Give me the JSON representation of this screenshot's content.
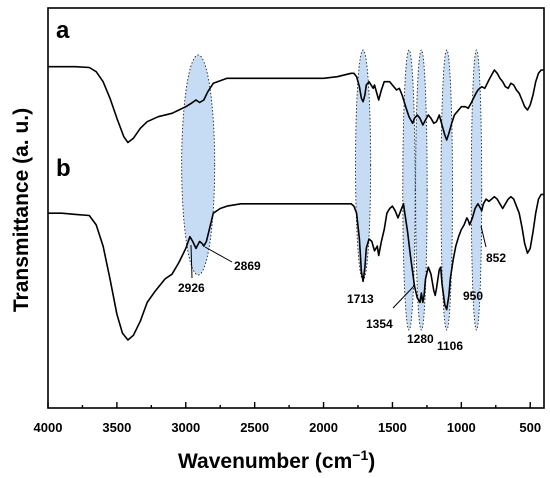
{
  "chart_data": {
    "type": "line",
    "xlabel_main": "Wavenumber (cm",
    "xlabel_sup": "−1",
    "xlabel_close": ")",
    "ylabel": "Transmittance (a. u.)",
    "xlim": [
      4000,
      400
    ],
    "x_ticks": [
      4000,
      3500,
      3000,
      2500,
      2000,
      1500,
      1000,
      500
    ],
    "series": [
      {
        "name": "a",
        "points": [
          [
            4000,
            0.13
          ],
          [
            3800,
            0.13
          ],
          [
            3700,
            0.135
          ],
          [
            3650,
            0.16
          ],
          [
            3600,
            0.22
          ],
          [
            3550,
            0.32
          ],
          [
            3500,
            0.44
          ],
          [
            3450,
            0.55
          ],
          [
            3420,
            0.585
          ],
          [
            3380,
            0.56
          ],
          [
            3330,
            0.5
          ],
          [
            3280,
            0.46
          ],
          [
            3200,
            0.43
          ],
          [
            3100,
            0.41
          ],
          [
            3050,
            0.39
          ],
          [
            3000,
            0.37
          ],
          [
            2960,
            0.35
          ],
          [
            2926,
            0.33
          ],
          [
            2900,
            0.345
          ],
          [
            2869,
            0.33
          ],
          [
            2840,
            0.28
          ],
          [
            2800,
            0.23
          ],
          [
            2700,
            0.2
          ],
          [
            2600,
            0.2
          ],
          [
            2500,
            0.2
          ],
          [
            2400,
            0.2
          ],
          [
            2300,
            0.2
          ],
          [
            2200,
            0.2
          ],
          [
            2100,
            0.2
          ],
          [
            2000,
            0.2
          ],
          [
            1900,
            0.19
          ],
          [
            1800,
            0.17
          ],
          [
            1780,
            0.17
          ],
          [
            1760,
            0.19
          ],
          [
            1740,
            0.25
          ],
          [
            1725,
            0.32
          ],
          [
            1713,
            0.34
          ],
          [
            1700,
            0.3
          ],
          [
            1690,
            0.24
          ],
          [
            1670,
            0.22
          ],
          [
            1640,
            0.26
          ],
          [
            1630,
            0.24
          ],
          [
            1600,
            0.33
          ],
          [
            1580,
            0.27
          ],
          [
            1560,
            0.22
          ],
          [
            1520,
            0.22
          ],
          [
            1490,
            0.25
          ],
          [
            1470,
            0.27
          ],
          [
            1450,
            0.26
          ],
          [
            1430,
            0.3
          ],
          [
            1400,
            0.38
          ],
          [
            1380,
            0.43
          ],
          [
            1354,
            0.47
          ],
          [
            1340,
            0.44
          ],
          [
            1320,
            0.42
          ],
          [
            1300,
            0.44
          ],
          [
            1280,
            0.48
          ],
          [
            1260,
            0.45
          ],
          [
            1240,
            0.42
          ],
          [
            1220,
            0.44
          ],
          [
            1200,
            0.47
          ],
          [
            1180,
            0.46
          ],
          [
            1160,
            0.42
          ],
          [
            1140,
            0.48
          ],
          [
            1120,
            0.54
          ],
          [
            1106,
            0.57
          ],
          [
            1090,
            0.53
          ],
          [
            1070,
            0.47
          ],
          [
            1050,
            0.42
          ],
          [
            1030,
            0.4
          ],
          [
            1000,
            0.37
          ],
          [
            970,
            0.37
          ],
          [
            950,
            0.38
          ],
          [
            930,
            0.35
          ],
          [
            900,
            0.3
          ],
          [
            880,
            0.27
          ],
          [
            852,
            0.25
          ],
          [
            830,
            0.26
          ],
          [
            800,
            0.21
          ],
          [
            780,
            0.18
          ],
          [
            760,
            0.15
          ],
          [
            740,
            0.17
          ],
          [
            720,
            0.2
          ],
          [
            700,
            0.22
          ],
          [
            680,
            0.25
          ],
          [
            660,
            0.26
          ],
          [
            640,
            0.23
          ],
          [
            620,
            0.24
          ],
          [
            600,
            0.27
          ],
          [
            580,
            0.29
          ],
          [
            560,
            0.33
          ],
          [
            540,
            0.37
          ],
          [
            520,
            0.39
          ],
          [
            500,
            0.36
          ],
          [
            480,
            0.3
          ],
          [
            460,
            0.22
          ],
          [
            440,
            0.17
          ],
          [
            420,
            0.15
          ],
          [
            400,
            0.15
          ]
        ]
      },
      {
        "name": "b",
        "points": [
          [
            4000,
            0.12
          ],
          [
            3900,
            0.12
          ],
          [
            3800,
            0.125
          ],
          [
            3700,
            0.13
          ],
          [
            3650,
            0.17
          ],
          [
            3600,
            0.26
          ],
          [
            3550,
            0.4
          ],
          [
            3500,
            0.55
          ],
          [
            3460,
            0.63
          ],
          [
            3420,
            0.66
          ],
          [
            3380,
            0.64
          ],
          [
            3330,
            0.58
          ],
          [
            3280,
            0.5
          ],
          [
            3220,
            0.45
          ],
          [
            3150,
            0.4
          ],
          [
            3100,
            0.38
          ],
          [
            3050,
            0.33
          ],
          [
            3000,
            0.27
          ],
          [
            2970,
            0.22
          ],
          [
            2950,
            0.24
          ],
          [
            2926,
            0.27
          ],
          [
            2900,
            0.24
          ],
          [
            2880,
            0.25
          ],
          [
            2869,
            0.26
          ],
          [
            2850,
            0.24
          ],
          [
            2800,
            0.12
          ],
          [
            2750,
            0.1
          ],
          [
            2700,
            0.09
          ],
          [
            2600,
            0.08
          ],
          [
            2500,
            0.08
          ],
          [
            2400,
            0.08
          ],
          [
            2300,
            0.08
          ],
          [
            2200,
            0.08
          ],
          [
            2100,
            0.08
          ],
          [
            2000,
            0.08
          ],
          [
            1900,
            0.08
          ],
          [
            1800,
            0.08
          ],
          [
            1780,
            0.09
          ],
          [
            1760,
            0.12
          ],
          [
            1740,
            0.23
          ],
          [
            1725,
            0.37
          ],
          [
            1713,
            0.41
          ],
          [
            1700,
            0.35
          ],
          [
            1690,
            0.27
          ],
          [
            1670,
            0.23
          ],
          [
            1650,
            0.24
          ],
          [
            1630,
            0.28
          ],
          [
            1610,
            0.26
          ],
          [
            1600,
            0.3
          ],
          [
            1580,
            0.24
          ],
          [
            1560,
            0.19
          ],
          [
            1540,
            0.12
          ],
          [
            1520,
            0.1
          ],
          [
            1500,
            0.09
          ],
          [
            1480,
            0.11
          ],
          [
            1460,
            0.14
          ],
          [
            1440,
            0.11
          ],
          [
            1420,
            0.08
          ],
          [
            1410,
            0.12
          ],
          [
            1390,
            0.2
          ],
          [
            1370,
            0.3
          ],
          [
            1354,
            0.37
          ],
          [
            1340,
            0.43
          ],
          [
            1320,
            0.48
          ],
          [
            1300,
            0.5
          ],
          [
            1290,
            0.46
          ],
          [
            1280,
            0.5
          ],
          [
            1270,
            0.47
          ],
          [
            1260,
            0.4
          ],
          [
            1240,
            0.35
          ],
          [
            1220,
            0.38
          ],
          [
            1200,
            0.45
          ],
          [
            1190,
            0.47
          ],
          [
            1180,
            0.44
          ],
          [
            1160,
            0.36
          ],
          [
            1150,
            0.35
          ],
          [
            1140,
            0.42
          ],
          [
            1120,
            0.51
          ],
          [
            1106,
            0.53
          ],
          [
            1090,
            0.47
          ],
          [
            1080,
            0.4
          ],
          [
            1060,
            0.32
          ],
          [
            1040,
            0.26
          ],
          [
            1020,
            0.22
          ],
          [
            1000,
            0.19
          ],
          [
            980,
            0.17
          ],
          [
            960,
            0.14
          ],
          [
            950,
            0.15
          ],
          [
            940,
            0.17
          ],
          [
            920,
            0.14
          ],
          [
            900,
            0.1
          ],
          [
            880,
            0.08
          ],
          [
            860,
            0.1
          ],
          [
            852,
            0.11
          ],
          [
            840,
            0.08
          ],
          [
            820,
            0.06
          ],
          [
            800,
            0.07
          ],
          [
            780,
            0.06
          ],
          [
            760,
            0.05
          ],
          [
            740,
            0.06
          ],
          [
            720,
            0.08
          ],
          [
            700,
            0.1
          ],
          [
            680,
            0.08
          ],
          [
            660,
            0.06
          ],
          [
            640,
            0.05
          ],
          [
            620,
            0.06
          ],
          [
            600,
            0.09
          ],
          [
            580,
            0.12
          ],
          [
            560,
            0.18
          ],
          [
            540,
            0.25
          ],
          [
            520,
            0.29
          ],
          [
            500,
            0.27
          ],
          [
            480,
            0.2
          ],
          [
            460,
            0.12
          ],
          [
            440,
            0.06
          ],
          [
            420,
            0.04
          ],
          [
            400,
            0.04
          ]
        ]
      }
    ],
    "highlight_bands": [
      {
        "center": 2910,
        "half_width": 120
      },
      {
        "center": 1713,
        "half_width": 55
      },
      {
        "center": 1380,
        "half_width": 45
      },
      {
        "center": 1290,
        "half_width": 42
      },
      {
        "center": 1106,
        "half_width": 42
      },
      {
        "center": 890,
        "half_width": 38
      }
    ],
    "peak_labels": [
      "2926",
      "2869",
      "1713",
      "1354",
      "1280",
      "1106",
      "950",
      "852"
    ]
  }
}
